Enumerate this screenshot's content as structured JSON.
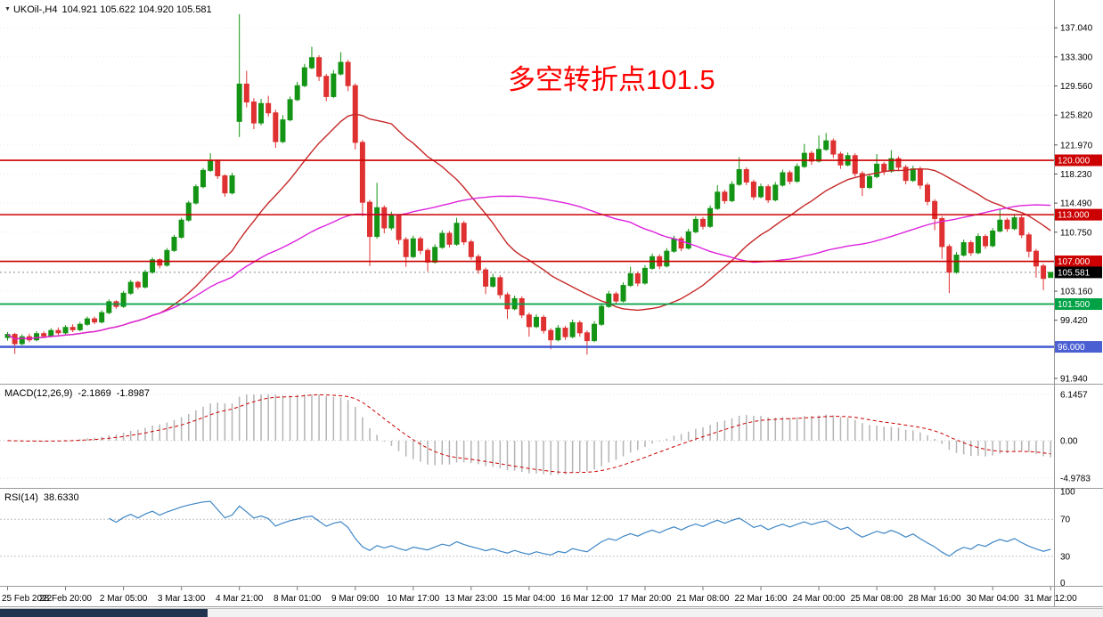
{
  "header": {
    "symbol": "UKOil-,H4",
    "ohlc": "104.921 105.622 104.920 105.581"
  },
  "icons": {
    "symbol_marker": "▼"
  },
  "annotation": {
    "text": "多空转折点101.5",
    "color": "#ff0000"
  },
  "colors": {
    "up": "#149414",
    "down": "#df3131",
    "ma_fast": "#c62828",
    "ma_slow": "#dd22dd",
    "grid": "#ececec",
    "separator": "#9a9a9a",
    "last_price_line": "#8a8a8a",
    "macd_hist": "#b4b4b4",
    "macd_signal": "#cc0000",
    "rsi_line": "#3e86c6",
    "level_line": "#c4c4c4",
    "axis_text": "#000000",
    "scrollbar_thumb": "#20334f"
  },
  "price_axis": {
    "ticks": [
      {
        "value": 137.04,
        "label": "137.040"
      },
      {
        "value": 133.3,
        "label": "133.300"
      },
      {
        "value": 129.56,
        "label": "129.560"
      },
      {
        "value": 125.82,
        "label": "125.820"
      },
      {
        "value": 121.97,
        "label": "121.970"
      },
      {
        "value": 118.23,
        "label": "118.230"
      },
      {
        "value": 114.49,
        "label": "114.490"
      },
      {
        "value": 110.75,
        "label": "110.750"
      },
      {
        "value": 103.16,
        "label": "103.160"
      },
      {
        "value": 99.42,
        "label": "99.420"
      },
      {
        "value": 91.94,
        "label": "91.940"
      }
    ]
  },
  "hlines": [
    {
      "value": 120.0,
      "label": "120.000",
      "color": "#cc0000",
      "width": 1.6
    },
    {
      "value": 113.0,
      "label": "113.000",
      "color": "#cc0000",
      "width": 1.6
    },
    {
      "value": 107.0,
      "label": "107.000",
      "color": "#cc0000",
      "width": 1.6
    },
    {
      "value": 101.5,
      "label": "101.500",
      "color": "#00a245",
      "width": 1.8
    },
    {
      "value": 96.0,
      "label": "96.000",
      "color": "#4a5fd2",
      "width": 2.6
    }
  ],
  "last_price": {
    "value": 105.581,
    "label": "105.581",
    "box_color": "#000000"
  },
  "time_axis": [
    "25 Feb 2022",
    "28 Feb 20:00",
    "2 Mar 05:00",
    "3 Mar 13:00",
    "4 Mar 21:00",
    "8 Mar 01:00",
    "9 Mar 09:00",
    "10 Mar 17:00",
    "13 Mar 23:00",
    "15 Mar 04:00",
    "16 Mar 12:00",
    "17 Mar 20:00",
    "21 Mar 08:00",
    "22 Mar 16:00",
    "24 Mar 00:00",
    "25 Mar 08:00",
    "28 Mar 16:00",
    "30 Mar 04:00",
    "31 Mar 12:00"
  ],
  "panes": {
    "macd": {
      "title": "MACD(12,26,9)",
      "value_main": "-2.1869",
      "value_signal": "-1.8987",
      "fast": 12,
      "slow": 26,
      "signal": 9,
      "axis_max": 6.1457,
      "axis_min": -4.9783,
      "axis_labels": {
        "max": "6.1457",
        "zero": "0.00",
        "min": "-4.9783"
      }
    },
    "rsi": {
      "title": "RSI(14)",
      "value": "38.6330",
      "period": 14,
      "levels": [
        70,
        30
      ],
      "axis_values": [
        100,
        70,
        30,
        0
      ]
    }
  },
  "chart_data": {
    "type": "candlestick",
    "symbol": "UKOil-",
    "timeframe": "H4",
    "ylim": [
      91.94,
      138.9
    ],
    "label_step": 8,
    "ma": [
      {
        "name": "ma-fast-line",
        "type": "sma",
        "period": 22,
        "color_key": "ma_fast"
      },
      {
        "name": "ma-slow-line",
        "type": "sma",
        "period": 55,
        "color_key": "ma_slow"
      }
    ],
    "candles": [
      [
        97.2,
        97.9,
        96.8,
        97.6
      ],
      [
        97.6,
        97.8,
        95.1,
        96.4
      ],
      [
        96.4,
        97.6,
        96.2,
        97.3
      ],
      [
        97.3,
        97.7,
        96.6,
        96.9
      ],
      [
        96.9,
        98.0,
        96.7,
        97.7
      ],
      [
        97.7,
        98.0,
        97.1,
        97.4
      ],
      [
        97.4,
        98.4,
        97.2,
        98.1
      ],
      [
        98.1,
        98.5,
        97.5,
        97.8
      ],
      [
        97.8,
        98.8,
        97.6,
        98.5
      ],
      [
        98.5,
        98.9,
        97.9,
        98.2
      ],
      [
        98.2,
        99.2,
        98.0,
        98.9
      ],
      [
        98.9,
        99.9,
        98.7,
        99.6
      ],
      [
        99.6,
        99.9,
        98.9,
        99.2
      ],
      [
        99.2,
        100.7,
        99.0,
        100.4
      ],
      [
        100.4,
        102.1,
        100.2,
        101.8
      ],
      [
        101.8,
        102.0,
        100.9,
        101.2
      ],
      [
        101.2,
        103.2,
        101.0,
        102.9
      ],
      [
        102.9,
        104.6,
        102.7,
        104.3
      ],
      [
        104.3,
        104.5,
        103.4,
        103.7
      ],
      [
        103.7,
        105.9,
        103.5,
        105.6
      ],
      [
        105.6,
        107.5,
        105.4,
        107.2
      ],
      [
        107.2,
        107.4,
        106.1,
        106.5
      ],
      [
        106.5,
        108.7,
        106.3,
        108.4
      ],
      [
        108.4,
        110.4,
        108.2,
        110.1
      ],
      [
        110.1,
        112.6,
        109.9,
        112.3
      ],
      [
        112.3,
        114.8,
        112.1,
        114.5
      ],
      [
        114.5,
        116.9,
        114.3,
        116.6
      ],
      [
        116.6,
        119.0,
        116.4,
        118.7
      ],
      [
        118.7,
        120.9,
        118.5,
        119.9
      ],
      [
        119.9,
        120.1,
        117.6,
        118.0
      ],
      [
        118.0,
        118.2,
        115.3,
        115.8
      ],
      [
        115.8,
        118.4,
        115.6,
        118.0
      ],
      [
        125.0,
        138.8,
        123.0,
        129.8
      ],
      [
        129.8,
        131.5,
        126.8,
        127.5
      ],
      [
        127.5,
        128.0,
        124.0,
        124.8
      ],
      [
        124.8,
        127.9,
        124.5,
        127.3
      ],
      [
        127.3,
        128.3,
        125.6,
        126.1
      ],
      [
        126.1,
        126.5,
        121.6,
        122.4
      ],
      [
        122.4,
        125.8,
        122.2,
        125.2
      ],
      [
        125.2,
        128.2,
        125.0,
        127.8
      ],
      [
        127.8,
        130.1,
        127.6,
        129.6
      ],
      [
        129.6,
        132.4,
        129.4,
        131.9
      ],
      [
        131.9,
        134.6,
        131.7,
        133.2
      ],
      [
        133.2,
        133.5,
        130.2,
        130.8
      ],
      [
        130.8,
        131.1,
        127.6,
        128.2
      ],
      [
        128.2,
        131.6,
        128.0,
        131.1
      ],
      [
        131.1,
        133.9,
        130.9,
        132.6
      ],
      [
        132.6,
        132.9,
        128.9,
        129.6
      ],
      [
        129.6,
        129.9,
        121.4,
        122.3
      ],
      [
        122.3,
        122.6,
        112.8,
        114.6
      ],
      [
        114.6,
        114.9,
        106.4,
        110.2
      ],
      [
        110.2,
        117.1,
        109.9,
        113.9
      ],
      [
        113.9,
        114.2,
        110.6,
        111.3
      ],
      [
        111.3,
        113.4,
        111.0,
        112.9
      ],
      [
        112.9,
        113.1,
        109.2,
        109.8
      ],
      [
        109.8,
        110.1,
        106.3,
        107.6
      ],
      [
        107.6,
        110.3,
        107.4,
        109.9
      ],
      [
        109.9,
        110.2,
        107.9,
        108.4
      ],
      [
        108.4,
        108.7,
        105.7,
        106.9
      ],
      [
        106.9,
        109.2,
        106.7,
        108.8
      ],
      [
        108.8,
        111.0,
        108.6,
        110.6
      ],
      [
        110.6,
        110.9,
        108.8,
        109.2
      ],
      [
        109.2,
        112.6,
        109.0,
        111.9
      ],
      [
        111.9,
        112.2,
        109.1,
        109.5
      ],
      [
        109.5,
        109.8,
        107.2,
        107.6
      ],
      [
        107.6,
        107.9,
        105.4,
        105.9
      ],
      [
        105.9,
        106.2,
        102.8,
        103.8
      ],
      [
        103.8,
        105.4,
        103.6,
        104.9
      ],
      [
        104.9,
        105.2,
        102.2,
        102.7
      ],
      [
        102.7,
        103.0,
        99.6,
        100.9
      ],
      [
        100.9,
        102.6,
        100.7,
        102.2
      ],
      [
        102.2,
        102.5,
        99.7,
        100.1
      ],
      [
        100.1,
        100.4,
        97.3,
        98.6
      ],
      [
        98.6,
        100.2,
        98.4,
        99.8
      ],
      [
        99.8,
        100.1,
        97.7,
        98.1
      ],
      [
        98.1,
        98.4,
        95.7,
        96.9
      ],
      [
        96.9,
        98.8,
        96.7,
        98.4
      ],
      [
        98.4,
        98.7,
        96.9,
        97.3
      ],
      [
        97.3,
        99.5,
        97.1,
        99.1
      ],
      [
        99.1,
        99.4,
        97.3,
        97.8
      ],
      [
        97.8,
        98.1,
        95.0,
        96.8
      ],
      [
        96.8,
        99.3,
        96.6,
        98.9
      ],
      [
        98.9,
        101.6,
        98.7,
        101.2
      ],
      [
        101.2,
        103.2,
        101.0,
        102.8
      ],
      [
        102.8,
        103.1,
        101.5,
        101.9
      ],
      [
        101.9,
        104.3,
        101.7,
        103.9
      ],
      [
        103.9,
        106.3,
        103.7,
        105.4
      ],
      [
        105.4,
        105.7,
        103.8,
        104.2
      ],
      [
        104.2,
        106.5,
        104.0,
        106.1
      ],
      [
        106.1,
        108.0,
        105.9,
        107.6
      ],
      [
        107.6,
        107.9,
        106.0,
        106.4
      ],
      [
        106.4,
        108.7,
        106.2,
        108.3
      ],
      [
        108.3,
        110.3,
        108.1,
        109.9
      ],
      [
        109.9,
        110.2,
        108.3,
        108.7
      ],
      [
        108.7,
        111.2,
        108.5,
        110.8
      ],
      [
        110.8,
        112.8,
        110.6,
        112.4
      ],
      [
        112.4,
        112.7,
        111.1,
        111.5
      ],
      [
        111.5,
        114.2,
        111.3,
        113.8
      ],
      [
        113.8,
        116.8,
        113.6,
        115.9
      ],
      [
        115.9,
        116.2,
        114.4,
        114.8
      ],
      [
        114.8,
        117.3,
        114.6,
        116.9
      ],
      [
        116.9,
        120.4,
        116.7,
        118.8
      ],
      [
        118.8,
        119.1,
        116.8,
        117.2
      ],
      [
        117.2,
        117.5,
        114.9,
        115.3
      ],
      [
        115.3,
        117.0,
        115.1,
        116.6
      ],
      [
        116.6,
        116.9,
        114.5,
        114.9
      ],
      [
        114.9,
        117.2,
        114.7,
        116.8
      ],
      [
        116.8,
        118.8,
        116.6,
        118.4
      ],
      [
        118.4,
        118.7,
        116.9,
        117.3
      ],
      [
        117.3,
        119.6,
        117.1,
        119.2
      ],
      [
        119.2,
        122.1,
        119.0,
        120.9
      ],
      [
        120.9,
        121.2,
        119.4,
        119.9
      ],
      [
        119.9,
        123.2,
        119.7,
        121.4
      ],
      [
        121.4,
        123.5,
        121.2,
        122.5
      ],
      [
        122.5,
        122.8,
        120.3,
        120.8
      ],
      [
        120.8,
        121.1,
        118.9,
        119.4
      ],
      [
        119.4,
        121.0,
        119.2,
        120.6
      ],
      [
        120.6,
        120.9,
        117.9,
        118.3
      ],
      [
        118.3,
        118.6,
        115.4,
        116.5
      ],
      [
        116.5,
        118.3,
        116.3,
        117.9
      ],
      [
        117.9,
        120.8,
        117.7,
        119.5
      ],
      [
        119.5,
        119.8,
        118.1,
        118.6
      ],
      [
        118.6,
        121.3,
        118.4,
        120.2
      ],
      [
        120.2,
        120.5,
        118.6,
        119.1
      ],
      [
        119.1,
        119.4,
        116.9,
        117.4
      ],
      [
        117.4,
        119.3,
        117.2,
        118.9
      ],
      [
        118.9,
        119.2,
        116.3,
        116.8
      ],
      [
        116.8,
        117.1,
        114.2,
        114.7
      ],
      [
        114.7,
        115.0,
        111.0,
        112.5
      ],
      [
        112.5,
        112.8,
        107.3,
        108.9
      ],
      [
        108.9,
        109.2,
        102.9,
        105.6
      ],
      [
        105.6,
        108.2,
        105.4,
        107.8
      ],
      [
        107.8,
        109.8,
        107.6,
        109.4
      ],
      [
        109.4,
        109.7,
        107.7,
        108.1
      ],
      [
        108.1,
        110.6,
        107.9,
        110.2
      ],
      [
        110.2,
        110.5,
        108.6,
        109.0
      ],
      [
        109.0,
        111.3,
        108.8,
        110.9
      ],
      [
        110.9,
        113.7,
        110.7,
        112.3
      ],
      [
        112.3,
        112.6,
        110.8,
        111.2
      ],
      [
        111.2,
        113.0,
        111.0,
        112.6
      ],
      [
        112.6,
        112.9,
        110.0,
        110.4
      ],
      [
        110.4,
        110.7,
        107.5,
        108.3
      ],
      [
        108.3,
        108.6,
        104.9,
        106.4
      ],
      [
        106.4,
        106.7,
        103.3,
        104.8
      ],
      [
        104.921,
        105.622,
        104.92,
        105.581
      ]
    ]
  }
}
